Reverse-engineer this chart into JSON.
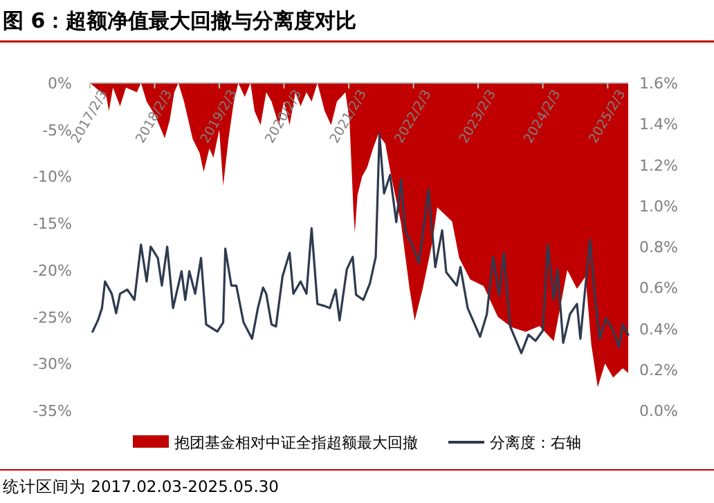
{
  "chart_data": {
    "type": "area",
    "title": "图 6：超额净值最大回撤与分离度对比",
    "annotations": [
      "统计区间为 2017.02.03-2025.05.30"
    ],
    "xlim": [
      "2017-02-03",
      "2025-05-30"
    ],
    "xticks": [
      {
        "value": "2017-02-03",
        "label": "2017/2/3"
      },
      {
        "value": "2018-02-03",
        "label": "2018/2/3"
      },
      {
        "value": "2019-02-03",
        "label": "2019/2/3"
      },
      {
        "value": "2020-02-03",
        "label": "2020/2/3"
      },
      {
        "value": "2021-02-03",
        "label": "2021/2/3"
      },
      {
        "value": "2022-02-03",
        "label": "2022/2/3"
      },
      {
        "value": "2023-02-03",
        "label": "2023/2/3"
      },
      {
        "value": "2024-02-03",
        "label": "2024/2/3"
      },
      {
        "value": "2025-02-03",
        "label": "2025/2/3"
      }
    ],
    "ylim": [
      -35,
      0
    ],
    "yticks": [
      {
        "value": -35,
        "label": "-35%"
      },
      {
        "value": -30,
        "label": "-30%"
      },
      {
        "value": -25,
        "label": "-25%"
      },
      {
        "value": -20,
        "label": "-20%"
      },
      {
        "value": -15,
        "label": "-15%"
      },
      {
        "value": -10,
        "label": "-10%"
      },
      {
        "value": -5,
        "label": "-5%"
      },
      {
        "value": 0,
        "label": "0%"
      }
    ],
    "y2lim": [
      0,
      1.6
    ],
    "y2ticks": [
      {
        "value": 0,
        "label": "0.0%"
      },
      {
        "value": 0.2,
        "label": "0.2%"
      },
      {
        "value": 0.4,
        "label": "0.4%"
      },
      {
        "value": 0.6,
        "label": "0.6%"
      },
      {
        "value": 0.8,
        "label": "0.8%"
      },
      {
        "value": 1.0,
        "label": "1.0%"
      },
      {
        "value": 1.2,
        "label": "1.2%"
      },
      {
        "value": 1.4,
        "label": "1.4%"
      },
      {
        "value": 1.6,
        "label": "1.6%"
      }
    ],
    "grid": false,
    "legend": "bottom",
    "series": [
      {
        "name": "抱团基金相对中证全指超额最大回撤",
        "color": "#c00000",
        "x": [
          "2017-02-03",
          "2017-05-07",
          "2017-05-21",
          "2017-06-13",
          "2017-07-23",
          "2017-08-25",
          "2017-10-26",
          "2017-11-18",
          "2017-12-20",
          "2018-02-07",
          "2018-04-01",
          "2018-04-29",
          "2018-05-25",
          "2018-06-17",
          "2018-07-19",
          "2018-09-06",
          "2018-10-15",
          "2018-11-07",
          "2018-12-09",
          "2019-01-01",
          "2019-02-03",
          "2019-02-25",
          "2019-03-27",
          "2019-04-26",
          "2019-05-21",
          "2019-06-27",
          "2019-07-29",
          "2019-08-21",
          "2019-09-24",
          "2019-10-26",
          "2019-11-25",
          "2020-01-05",
          "2020-02-03",
          "2020-03-06",
          "2020-04-08",
          "2020-05-07",
          "2020-06-09",
          "2020-07-08",
          "2020-08-10",
          "2020-09-20",
          "2020-10-26",
          "2020-11-28",
          "2021-01-15",
          "2021-02-07",
          "2021-03-02",
          "2021-03-09",
          "2021-03-24",
          "2021-04-19",
          "2021-05-18",
          "2021-06-20",
          "2021-07-19",
          "2021-08-28",
          "2021-10-01",
          "2021-11-25",
          "2022-01-12",
          "2022-02-10",
          "2022-03-27",
          "2022-05-21",
          "2022-06-17",
          "2022-09-09",
          "2022-10-19",
          "2022-12-20",
          "2023-03-06",
          "2023-05-25",
          "2023-08-10",
          "2023-10-29",
          "2024-01-15",
          "2024-04-05",
          "2024-06-20",
          "2024-08-14",
          "2024-10-01",
          "2024-11-03",
          "2024-12-09",
          "2025-01-19",
          "2025-03-06",
          "2025-04-29",
          "2025-05-30"
        ],
        "values": [
          0,
          -1.5,
          -3,
          -0.5,
          -2.5,
          -0.5,
          -1,
          0,
          -2,
          -3.5,
          -5.9,
          -4,
          -1,
          0,
          -2,
          -6,
          -7.5,
          -9.5,
          -7,
          -8,
          -5,
          -11,
          -6,
          -2,
          0,
          -1.5,
          0,
          -3,
          -4.5,
          -1,
          -2,
          -4.5,
          -2,
          -4.5,
          -1,
          -2.5,
          -1,
          -2,
          0,
          -3,
          -4.5,
          -2,
          -1,
          -4,
          -14,
          -16,
          -12,
          -10,
          -9,
          -7,
          -5.5,
          -6.5,
          -10,
          -15,
          -22,
          -25.4,
          -22,
          -17,
          -13.3,
          -14.8,
          -18.7,
          -21,
          -21.7,
          -25,
          -26.1,
          -26.6,
          -26,
          -27.6,
          -20,
          -22,
          -20.7,
          -28,
          -32.5,
          -30,
          -31.5,
          -30.5,
          -31
        ]
      },
      {
        "name": "分离度：右轴",
        "type": "line",
        "axis": "y2",
        "color": "#2e3a4f",
        "x": [
          "2017-02-18",
          "2017-03-20",
          "2017-04-12",
          "2017-04-29",
          "2017-06-06",
          "2017-07-01",
          "2017-07-23",
          "2017-09-02",
          "2017-10-12",
          "2017-11-18",
          "2017-12-20",
          "2018-01-12",
          "2018-02-21",
          "2018-03-16",
          "2018-04-15",
          "2018-05-18",
          "2018-07-05",
          "2018-07-26",
          "2018-08-18",
          "2018-09-20",
          "2018-10-23",
          "2018-11-21",
          "2019-01-23",
          "2019-02-25",
          "2019-03-09",
          "2019-04-12",
          "2019-05-10",
          "2019-06-20",
          "2019-08-07",
          "2019-09-09",
          "2019-10-08",
          "2019-10-26",
          "2019-11-25",
          "2019-12-20",
          "2020-01-26",
          "2020-03-06",
          "2020-03-27",
          "2020-05-07",
          "2020-06-09",
          "2020-07-08",
          "2020-08-10",
          "2020-09-20",
          "2020-10-19",
          "2020-11-21",
          "2020-12-13",
          "2021-01-23",
          "2021-02-25",
          "2021-03-16",
          "2021-04-26",
          "2021-06-02",
          "2021-07-05",
          "2021-07-26",
          "2021-08-21",
          "2021-09-24",
          "2021-10-29",
          "2021-11-25",
          "2021-12-17",
          "2022-01-26",
          "2022-03-06",
          "2022-04-29",
          "2022-06-06",
          "2022-07-15",
          "2022-08-07",
          "2022-10-05",
          "2022-10-26",
          "2022-12-06",
          "2023-02-14",
          "2023-03-24",
          "2023-04-29",
          "2023-06-02",
          "2023-06-27",
          "2023-08-03",
          "2023-10-05",
          "2023-11-14",
          "2023-12-24",
          "2024-02-03",
          "2024-03-02",
          "2024-04-05",
          "2024-04-26",
          "2024-05-28",
          "2024-07-05",
          "2024-08-14",
          "2024-09-02",
          "2024-10-26",
          "2024-11-25",
          "2024-12-20",
          "2025-01-26",
          "2025-03-06",
          "2025-04-08",
          "2025-04-29",
          "2025-05-30"
        ],
        "values": [
          0.385,
          0.44,
          0.5,
          0.63,
          0.57,
          0.475,
          0.57,
          0.59,
          0.54,
          0.81,
          0.63,
          0.8,
          0.745,
          0.61,
          0.8,
          0.5,
          0.68,
          0.54,
          0.68,
          0.57,
          0.745,
          0.42,
          0.385,
          0.43,
          0.79,
          0.61,
          0.61,
          0.43,
          0.35,
          0.5,
          0.6,
          0.57,
          0.42,
          0.41,
          0.655,
          0.77,
          0.57,
          0.63,
          0.57,
          0.89,
          0.52,
          0.51,
          0.5,
          0.59,
          0.44,
          0.69,
          0.75,
          0.565,
          0.54,
          0.62,
          0.75,
          1.35,
          1.06,
          1.15,
          0.92,
          1.13,
          0.88,
          0.81,
          0.72,
          1.08,
          0.7,
          0.88,
          0.675,
          0.61,
          0.7,
          0.5,
          0.36,
          0.47,
          0.75,
          0.56,
          0.77,
          0.41,
          0.28,
          0.37,
          0.34,
          0.39,
          0.81,
          0.54,
          0.69,
          0.33,
          0.47,
          0.52,
          0.35,
          0.835,
          0.54,
          0.35,
          0.45,
          0.39,
          0.31,
          0.42,
          0.37
        ]
      }
    ]
  }
}
